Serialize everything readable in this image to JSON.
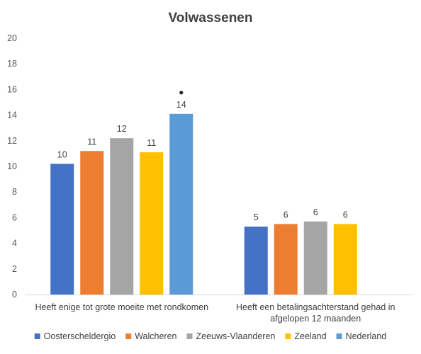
{
  "chart_data": {
    "type": "bar",
    "title": "Volwassenen",
    "xlabel": "",
    "ylabel": "",
    "ylim": [
      0,
      20
    ],
    "yticks": [
      0,
      2,
      4,
      6,
      8,
      10,
      12,
      14,
      16,
      18,
      20
    ],
    "grid": false,
    "legend_position": "bottom",
    "categories": [
      [
        "Heeft enige tot grote moeite met rondkomen"
      ],
      [
        "Heeft een betalingsachterstand gehad in",
        "afgelopen 12 maanden"
      ]
    ],
    "series": [
      {
        "name": "Oosterscheldergio",
        "color": "#4472C4",
        "values": [
          10.2,
          5.3
        ],
        "labels": [
          "10",
          "5"
        ]
      },
      {
        "name": "Walcheren",
        "color": "#ED7D31",
        "values": [
          11.2,
          5.5
        ],
        "labels": [
          "11",
          "6"
        ]
      },
      {
        "name": "Zeeuws-Vlaanderen",
        "color": "#A5A5A5",
        "values": [
          12.2,
          5.7
        ],
        "labels": [
          "12",
          "6"
        ]
      },
      {
        "name": "Zeeland",
        "color": "#FFC000",
        "values": [
          11.1,
          5.5
        ],
        "labels": [
          "11",
          "6"
        ]
      },
      {
        "name": "Nederland",
        "color": "#5B9BD5",
        "values": [
          14.1,
          null
        ],
        "labels": [
          "14",
          ""
        ]
      }
    ],
    "markers": [
      {
        "series": "Nederland",
        "category": 0,
        "symbol": "•"
      }
    ]
  }
}
